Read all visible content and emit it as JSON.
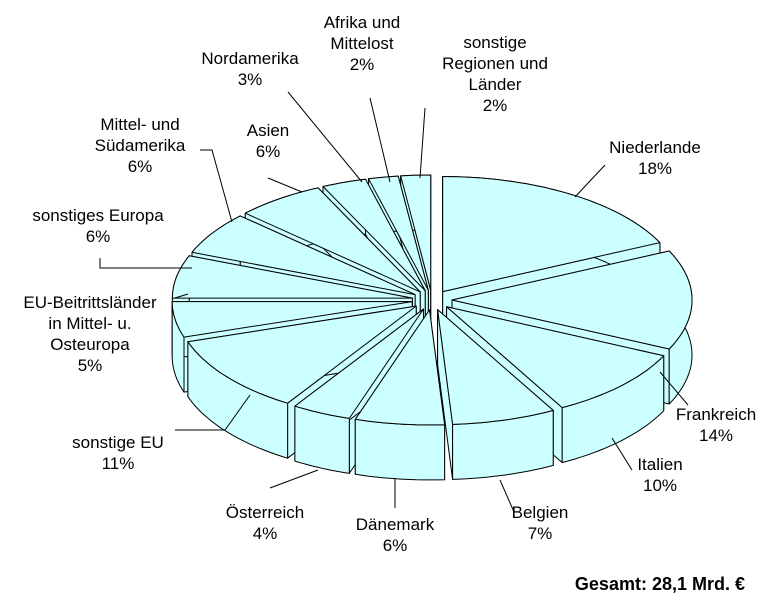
{
  "chart_data": {
    "type": "pie3d",
    "categories": [
      "Niederlande",
      "Frankreich",
      "Italien",
      "Belgien",
      "Dänemark",
      "Österreich",
      "sonstige EU",
      "EU-Beitrittsländer\nin Mittel- u.\nOsteuropa",
      "sonstiges Europa",
      "Mittel- und\nSüdamerika",
      "Asien",
      "Nordamerika",
      "Afrika und\nMittelost",
      "sonstige\nRegionen und\nLänder"
    ],
    "values": [
      18,
      14,
      10,
      7,
      6,
      4,
      11,
      5,
      6,
      6,
      6,
      3,
      2,
      2
    ],
    "value_labels": [
      "18%",
      "14%",
      "10%",
      "7%",
      "6%",
      "4%",
      "11%",
      "5%",
      "6%",
      "6%",
      "6%",
      "3%",
      "2%",
      "2%"
    ],
    "color": "#ccffff",
    "footnote": "Gesamt: 28,1 Mrd. €"
  }
}
